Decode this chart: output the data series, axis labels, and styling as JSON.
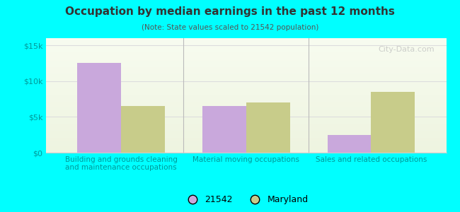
{
  "title": "Occupation by median earnings in the past 12 months",
  "subtitle": "(Note: State values scaled to 21542 population)",
  "background_color": "#00FFFF",
  "categories": [
    "Building and grounds cleaning\nand maintenance occupations",
    "Material moving occupations",
    "Sales and related occupations"
  ],
  "values_21542": [
    12500,
    6500,
    2500
  ],
  "values_maryland": [
    6500,
    7000,
    8500
  ],
  "bar_color_21542": "#c9a8dc",
  "bar_color_maryland": "#c8cc8a",
  "ylim": [
    0,
    16000
  ],
  "yticks": [
    0,
    5000,
    10000,
    15000
  ],
  "ytick_labels": [
    "$0",
    "$5k",
    "$10k",
    "$15k"
  ],
  "legend_label_21542": "21542",
  "legend_label_maryland": "Maryland",
  "bar_width": 0.35,
  "grid_color": "#dddddd",
  "watermark": "City-Data.com"
}
